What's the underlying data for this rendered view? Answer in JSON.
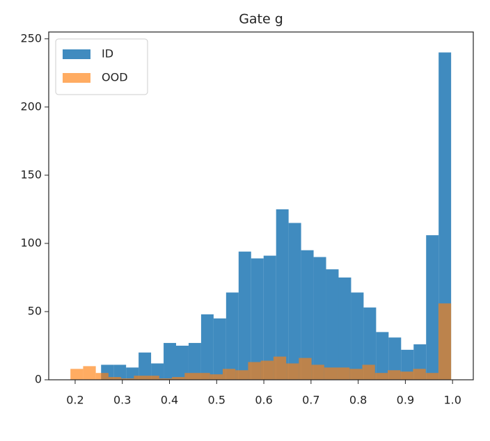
{
  "chart_data": {
    "type": "histogram",
    "title": "Gate g",
    "series": [
      {
        "name": "ID",
        "color": "#1f77b4",
        "bins": [
          0.255,
          0.2815,
          0.308,
          0.3345,
          0.361,
          0.3875,
          0.414,
          0.4405,
          0.467,
          0.4935,
          0.52,
          0.5465,
          0.573,
          0.5995,
          0.626,
          0.6525,
          0.679,
          0.7055,
          0.732,
          0.7585,
          0.785,
          0.8115,
          0.838,
          0.8645,
          0.891,
          0.9175,
          0.944,
          0.9705,
          0.997
        ],
        "values": [
          11,
          11,
          9,
          20,
          12,
          27,
          25,
          27,
          48,
          45,
          64,
          94,
          89,
          91,
          125,
          115,
          95,
          90,
          81,
          75,
          64,
          53,
          35,
          31,
          22,
          26,
          106,
          240
        ]
      },
      {
        "name": "OOD",
        "color": "#ff7f0e",
        "bins": [
          0.19,
          0.2169,
          0.2438,
          0.2707,
          0.2976,
          0.3245,
          0.3514,
          0.3783,
          0.4052,
          0.4321,
          0.459,
          0.4859,
          0.5128,
          0.5397,
          0.5666,
          0.5935,
          0.6204,
          0.6473,
          0.6742,
          0.7011,
          0.728,
          0.7549,
          0.7818,
          0.8087,
          0.8356,
          0.8625,
          0.8894,
          0.9163,
          0.9432,
          0.9701,
          0.997
        ],
        "values": [
          8,
          10,
          5,
          2,
          1,
          3,
          3,
          1,
          2,
          5,
          5,
          4,
          8,
          7,
          13,
          14,
          17,
          12,
          16,
          11,
          9,
          9,
          8,
          11,
          5,
          7,
          6,
          8,
          5,
          56
        ]
      }
    ],
    "xlim": [
      0.144,
      1.044
    ],
    "ylim": [
      0,
      255
    ],
    "xticks": [
      0.2,
      0.3,
      0.4,
      0.5,
      0.6,
      0.7,
      0.8,
      0.9,
      {
        "value": 1,
        "label": "1.0"
      }
    ],
    "yticks": [
      0,
      50,
      100,
      150,
      200,
      250
    ],
    "legend": "upper left"
  }
}
